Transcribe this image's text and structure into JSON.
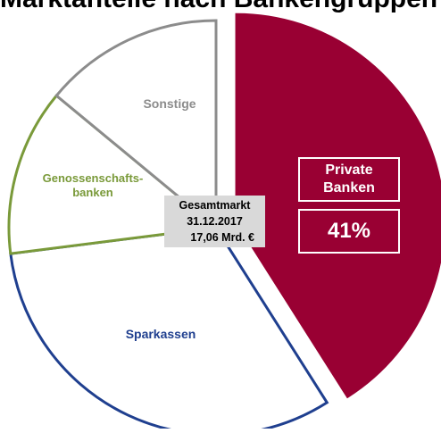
{
  "title": "Marktanteile nach Bankengruppen - Markt für Anlage",
  "chart_data": {
    "type": "pie",
    "slices": [
      {
        "label": "Private Banken",
        "label_lines": [
          "Private",
          "Banken"
        ],
        "value": 41,
        "value_label": "41%",
        "color": "#990033",
        "exploded": true
      },
      {
        "label": "Sparkassen",
        "value": 32,
        "color": "#ffffff",
        "edge_color": "#1f3f8f"
      },
      {
        "label": "Genossenschafts-banken",
        "label_lines": [
          "Genossenschafts-",
          "banken"
        ],
        "value": 13,
        "color": "#ffffff",
        "edge_color": "#7a9a3a"
      },
      {
        "label": "Sonstige",
        "value": 14,
        "color": "#ffffff",
        "edge_color": "#8c8c8c"
      }
    ],
    "center_box": {
      "lines": [
        "Gesamtmarkt",
        "31.12.2017",
        "17,06 Mrd. €"
      ],
      "background": "#d9d9d9"
    }
  }
}
